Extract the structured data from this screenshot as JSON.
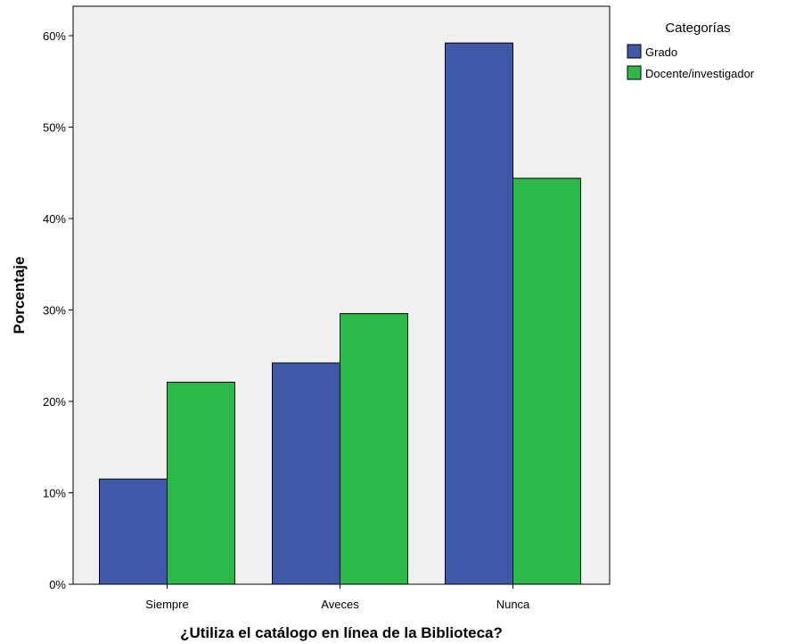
{
  "chart_data": {
    "type": "bar",
    "categories": [
      "Siempre",
      "Aveces",
      "Nunca"
    ],
    "series": [
      {
        "name": "Grado",
        "values": [
          11.5,
          24.2,
          59.2
        ],
        "color": "#3f58a8"
      },
      {
        "name": "Docente/investigador",
        "values": [
          22.1,
          29.6,
          44.4
        ],
        "color": "#2db84a"
      }
    ],
    "xlabel": "¿Utiliza el catálogo en línea de la Biblioteca?",
    "ylabel": "Porcentaje",
    "ylim": [
      0,
      65
    ],
    "yticks": [
      0,
      10,
      20,
      30,
      40,
      50,
      60
    ],
    "ytick_labels": [
      "0%",
      "10%",
      "20%",
      "30%",
      "40%",
      "50%",
      "60%"
    ],
    "legend": {
      "title": "Categorías",
      "position": "top-right"
    },
    "plot_background": "#f0f0f0",
    "grid": false
  }
}
